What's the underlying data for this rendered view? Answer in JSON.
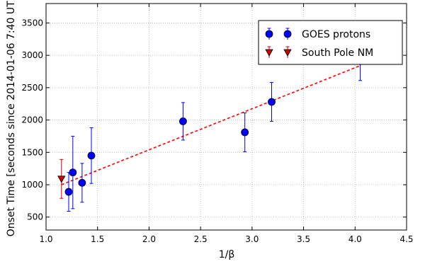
{
  "chart_data": {
    "type": "scatter",
    "xlabel": "1/β",
    "ylabel": "Onset Time [seconds since 2014-01-06 7:40 UT]",
    "xlim": [
      1.0,
      4.5
    ],
    "ylim": [
      300,
      3800
    ],
    "xticks": [
      "1.0",
      "1.5",
      "2.0",
      "2.5",
      "3.0",
      "3.5",
      "4.0",
      "4.5"
    ],
    "yticks": [
      "500",
      "1000",
      "1500",
      "2000",
      "2500",
      "3000",
      "3500"
    ],
    "grid": true,
    "legend_position": "top-right",
    "series": [
      {
        "name": "GOES protons",
        "marker": "circle",
        "color": "#0000ff",
        "points": [
          {
            "x": 1.22,
            "y": 890,
            "err": 300
          },
          {
            "x": 1.26,
            "y": 1190,
            "err": 560
          },
          {
            "x": 1.35,
            "y": 1030,
            "err": 300
          },
          {
            "x": 1.44,
            "y": 1450,
            "err": 430
          },
          {
            "x": 2.33,
            "y": 1980,
            "err": 290
          },
          {
            "x": 2.93,
            "y": 1810,
            "err": 300
          },
          {
            "x": 3.19,
            "y": 2280,
            "err": 300
          },
          {
            "x": 4.05,
            "y": 2910,
            "err": 300
          }
        ]
      },
      {
        "name": "South Pole NM",
        "marker": "triangle-down",
        "color": "#cc0000",
        "points": [
          {
            "x": 1.15,
            "y": 1090,
            "err": 300
          }
        ]
      }
    ],
    "fit_line": {
      "style": "dashed",
      "color": "#ff0000",
      "x": [
        1.15,
        4.05
      ],
      "y": [
        1000,
        2840
      ]
    }
  }
}
